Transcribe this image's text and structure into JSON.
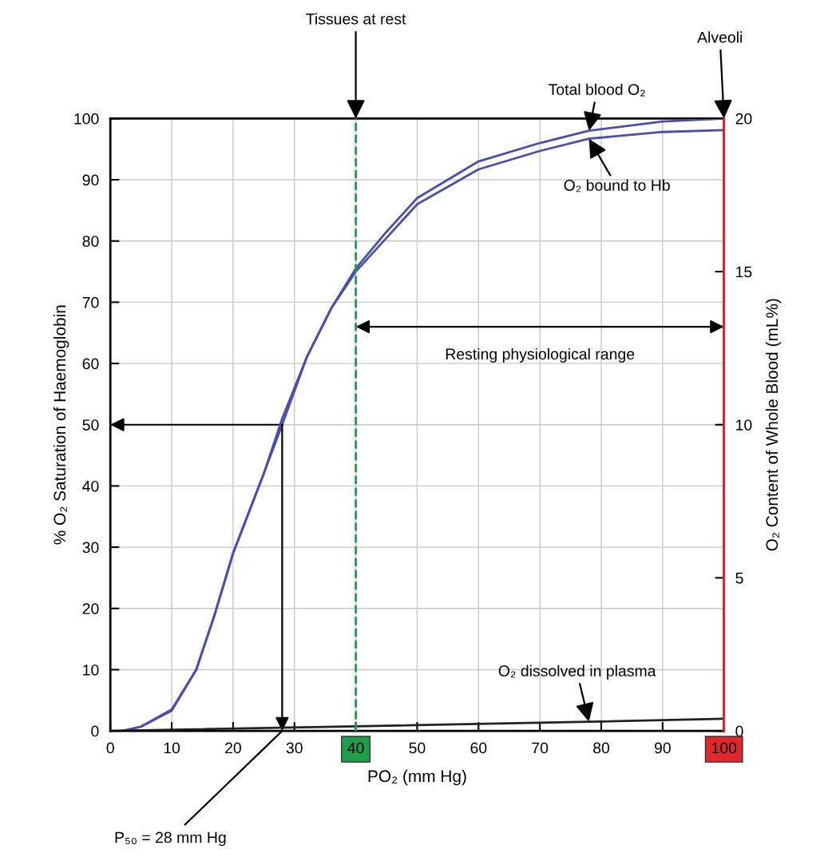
{
  "chart_data": {
    "type": "line",
    "xlabel": "PO₂ (mm Hg)",
    "ylabel": "% O₂ Saturation of Haemoglobin",
    "y2label": "O₂ Content of Whole Blood (mL%)",
    "xlim": [
      0,
      100
    ],
    "xticks": [
      0,
      10,
      20,
      30,
      40,
      50,
      60,
      70,
      80,
      90,
      100
    ],
    "ylim": [
      0,
      100
    ],
    "yticks": [
      0,
      10,
      20,
      30,
      40,
      50,
      60,
      70,
      80,
      90,
      100
    ],
    "y2lim": [
      0,
      20
    ],
    "y2ticks": [
      0,
      5,
      10,
      15,
      20
    ],
    "grid": true,
    "marker": "none",
    "line_style": "solid",
    "series": [
      {
        "color": "#4a4fa8",
        "x": [
          2,
          5,
          10,
          14,
          17,
          20,
          25,
          28,
          32,
          36,
          40,
          45,
          50,
          60,
          70,
          78,
          90,
          100
        ],
        "values": [
          0,
          0.7,
          3.3,
          10,
          19,
          29,
          42,
          50,
          61,
          69,
          75,
          80.5,
          86,
          91.7,
          94.7,
          96.7,
          97.8,
          98.1
        ]
      },
      {
        "color": "#4a4fa8",
        "axis": "y2",
        "x": [
          2,
          5,
          10,
          14,
          17,
          20,
          25,
          28,
          32,
          36,
          40,
          45,
          50,
          60,
          70,
          78,
          90,
          100
        ],
        "values": [
          0,
          0.14,
          0.7,
          2,
          3.8,
          5.8,
          8.4,
          10.2,
          12.2,
          13.8,
          15.1,
          16.3,
          17.4,
          18.6,
          19.2,
          19.6,
          19.9,
          20
        ]
      },
      {
        "color": "#222222",
        "axis": "y2",
        "x": [
          0,
          40,
          78,
          100
        ],
        "values": [
          0,
          0.15,
          0.3,
          0.4
        ]
      }
    ],
    "ref_lines": [
      {
        "axis": "x",
        "value": 40,
        "color": "#1e9e4a",
        "line_style": "dashed"
      },
      {
        "axis": "x",
        "value": 100,
        "color": "#e0282a",
        "line_style": "solid"
      }
    ],
    "annotations": [
      {
        "text": "Tissues at rest",
        "x": 40,
        "y": 100
      },
      {
        "text": "Alveoli",
        "x": 100,
        "y": 100
      },
      {
        "text": "Total blood O₂",
        "x": 78,
        "y": 98
      },
      {
        "text": "O₂ bound to Hb",
        "x": 78,
        "y": 96.7
      },
      "Resting physiological range",
      {
        "text": "O₂ dissolved in plasma",
        "x": 78,
        "y": 1.5
      },
      {
        "text": "P₅₀ = 28 mm Hg",
        "x": 28,
        "y": 0
      }
    ]
  }
}
